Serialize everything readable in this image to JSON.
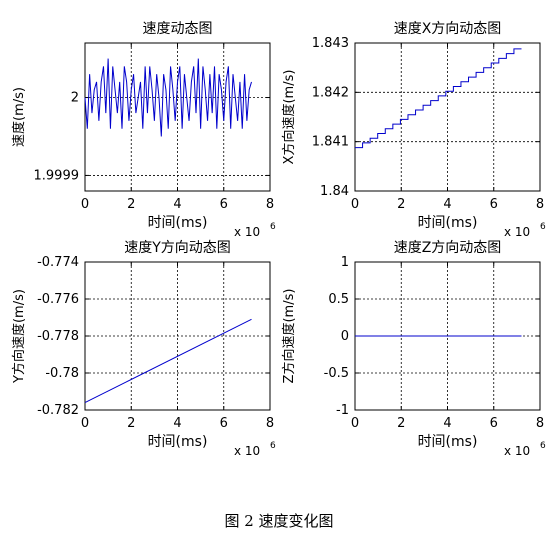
{
  "figure_caption": "图 2  速度变化图",
  "chart_data": [
    {
      "type": "line",
      "title": "速度动态图",
      "xlabel": "时间(ms)",
      "ylabel": "速度(m/s)",
      "x_multiplier_label": "x 10",
      "x_multiplier_exp": "6",
      "xlim": [
        0,
        8
      ],
      "ylim": [
        1.99988,
        2.00007
      ],
      "x_ticks": [
        "0",
        "2",
        "4",
        "6",
        "8"
      ],
      "y_ticks": [
        {
          "v": 1.9999,
          "label": "1.9999"
        },
        {
          "v": 2.0,
          "label": "2"
        }
      ],
      "grid": true,
      "color": "#0000cc",
      "series": [
        {
          "x": [
            0.0,
            0.1,
            0.2,
            0.3,
            0.4,
            0.5,
            0.6,
            0.7,
            0.8,
            0.9,
            1.0,
            1.1,
            1.2,
            1.3,
            1.4,
            1.5,
            1.6,
            1.7,
            1.8,
            1.9,
            2.0,
            2.1,
            2.2,
            2.3,
            2.4,
            2.5,
            2.6,
            2.7,
            2.8,
            2.9,
            3.0,
            3.1,
            3.2,
            3.3,
            3.4,
            3.5,
            3.6,
            3.7,
            3.8,
            3.9,
            4.0,
            4.1,
            4.2,
            4.3,
            4.4,
            4.5,
            4.6,
            4.7,
            4.8,
            4.9,
            5.0,
            5.1,
            5.2,
            5.3,
            5.4,
            5.5,
            5.6,
            5.7,
            5.8,
            5.9,
            6.0,
            6.1,
            6.2,
            6.3,
            6.4,
            6.5,
            6.6,
            6.7,
            6.8,
            6.9,
            7.0,
            7.1,
            7.2
          ],
          "y": [
            2.0,
            1.99996,
            2.00003,
            1.99998,
            2.00001,
            2.00002,
            1.99997,
            2.00002,
            2.00004,
            1.99998,
            2.00005,
            1.99996,
            2.00004,
            2.00001,
            1.99998,
            2.00002,
            1.99996,
            2.00004,
            2.00002,
            1.99997,
            2.00001,
            2.00003,
            1.99998,
            2.0,
            2.00002,
            1.99996,
            2.00004,
            1.99998,
            2.00004,
            2.00001,
            1.99997,
            2.00003,
            2.0,
            1.99995,
            2.00003,
            2.00001,
            1.99996,
            2.00004,
            2.00001,
            1.99997,
            2.00002,
            2.00004,
            1.99996,
            2.00003,
            2.0,
            1.99997,
            2.00002,
            2.00004,
            1.99998,
            2.00005,
            1.99996,
            2.00004,
            2.00001,
            1.99997,
            2.00003,
            1.99998,
            2.00004,
            1.99996,
            2.00003,
            2.00001,
            1.99997,
            2.00002,
            2.00004,
            1.99996,
            2.00003,
            2.0,
            1.99997,
            2.00002,
            1.99996,
            2.00003,
            1.99997,
            2.00001,
            2.00002
          ]
        }
      ]
    },
    {
      "type": "line",
      "title": "速度X方向动态图",
      "xlabel": "时间(ms)",
      "ylabel": "X方向速度(m/s)",
      "x_multiplier_label": "x 10",
      "x_multiplier_exp": "6",
      "xlim": [
        0,
        8
      ],
      "ylim": [
        1.84,
        1.843
      ],
      "x_ticks": [
        "0",
        "2",
        "4",
        "6",
        "8"
      ],
      "y_ticks": [
        {
          "v": 1.84,
          "label": "1.84"
        },
        {
          "v": 1.841,
          "label": "1.841"
        },
        {
          "v": 1.842,
          "label": "1.842"
        },
        {
          "v": 1.843,
          "label": "1.843"
        }
      ],
      "grid": true,
      "color": "#0000cc",
      "step_series": {
        "x_start": 0,
        "x_end": 7.2,
        "y_start": 1.84088,
        "y_end": 1.84288,
        "steps": 22
      }
    },
    {
      "type": "line",
      "title": "速度Y方向动态图",
      "xlabel": "时间(ms)",
      "ylabel": "Y方向速度(m/s)",
      "x_multiplier_label": "x 10",
      "x_multiplier_exp": "6",
      "xlim": [
        0,
        8
      ],
      "ylim": [
        -0.782,
        -0.774
      ],
      "x_ticks": [
        "0",
        "2",
        "4",
        "6",
        "8"
      ],
      "y_ticks": [
        {
          "v": -0.782,
          "label": "-0.782"
        },
        {
          "v": -0.78,
          "label": "-0.78"
        },
        {
          "v": -0.778,
          "label": "-0.778"
        },
        {
          "v": -0.776,
          "label": "-0.776"
        },
        {
          "v": -0.774,
          "label": "-0.774"
        }
      ],
      "grid": true,
      "color": "#0000cc",
      "series": [
        {
          "x": [
            0,
            7.2
          ],
          "y": [
            -0.7816,
            -0.7771
          ]
        }
      ]
    },
    {
      "type": "line",
      "title": "速度Z方向动态图",
      "xlabel": "时间(ms)",
      "ylabel": "Z方向速度(m/s)",
      "x_multiplier_label": "x 10",
      "x_multiplier_exp": "6",
      "xlim": [
        0,
        8
      ],
      "ylim": [
        -1,
        1
      ],
      "x_ticks": [
        "0",
        "2",
        "4",
        "6",
        "8"
      ],
      "y_ticks": [
        {
          "v": -1,
          "label": "-1"
        },
        {
          "v": -0.5,
          "label": "-0.5"
        },
        {
          "v": 0,
          "label": "0"
        },
        {
          "v": 0.5,
          "label": "0.5"
        },
        {
          "v": 1,
          "label": "1"
        }
      ],
      "grid": true,
      "color": "#0000cc",
      "series": [
        {
          "x": [
            0,
            7.2
          ],
          "y": [
            0,
            0
          ]
        }
      ]
    }
  ]
}
